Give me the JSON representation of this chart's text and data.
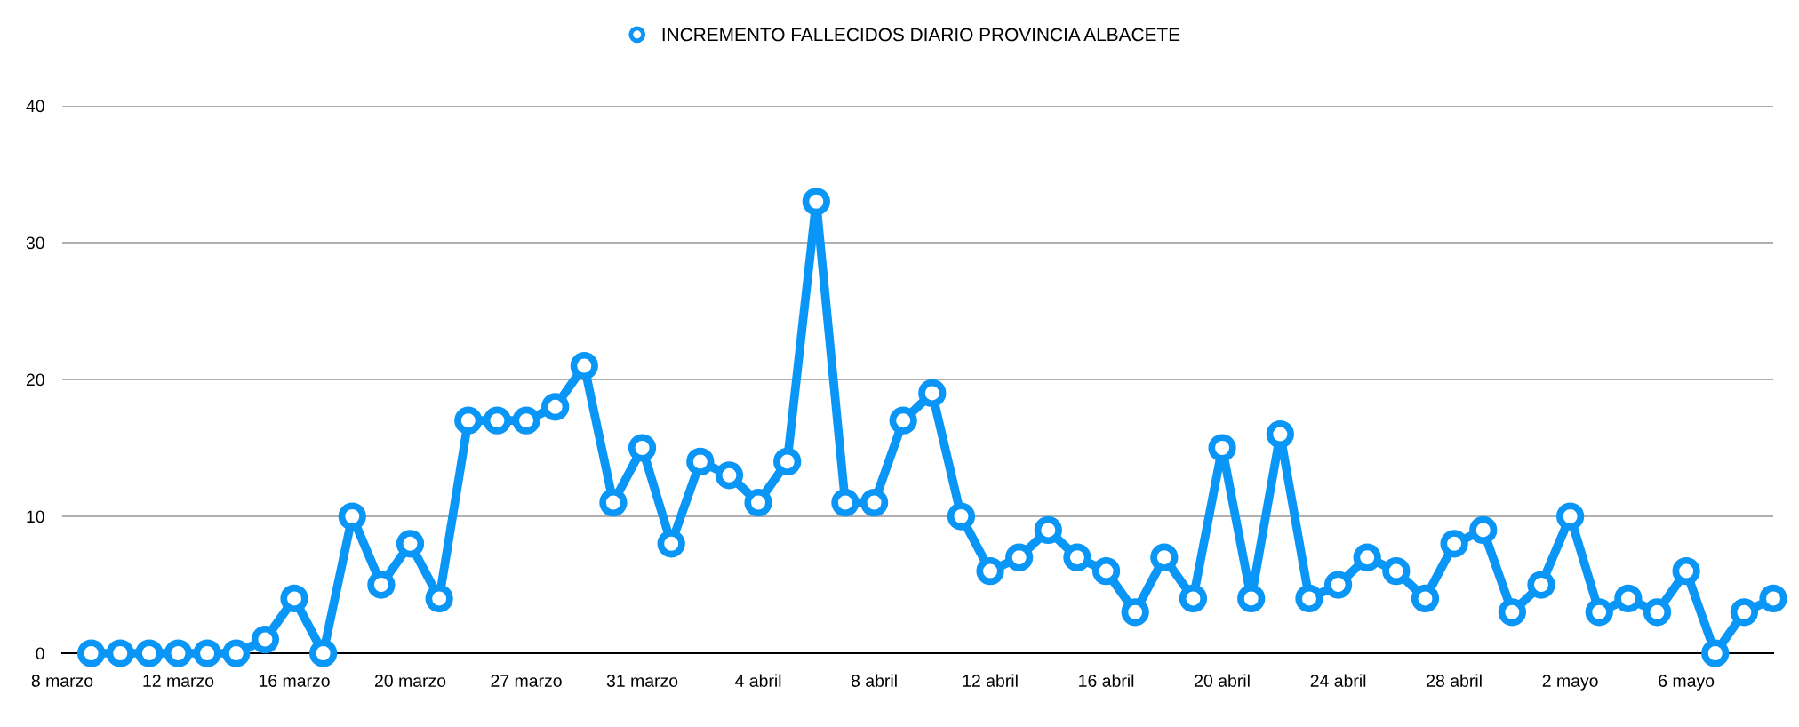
{
  "chart_data": {
    "type": "line",
    "categories": [
      "8 marzo",
      null,
      null,
      null,
      "12 marzo",
      null,
      null,
      null,
      "16 marzo",
      null,
      null,
      null,
      "20 marzo",
      null,
      null,
      null,
      "27 marzo",
      null,
      null,
      null,
      "31 marzo",
      null,
      null,
      null,
      "4 abril",
      null,
      null,
      null,
      "8 abril",
      null,
      null,
      null,
      "12 abril",
      null,
      null,
      null,
      "16 abril",
      null,
      null,
      null,
      "20 abril",
      null,
      null,
      null,
      "24 abril",
      null,
      null,
      null,
      "28 abril",
      null,
      null,
      null,
      "2 mayo",
      null,
      null,
      null,
      "6 mayo",
      null,
      null,
      null
    ],
    "series": [
      {
        "name": "INCREMENTO FALLECIDOS DIARIO PROVINCIA ALBACETE",
        "color": "#0a96f7",
        "values": [
          null,
          0,
          0,
          0,
          0,
          0,
          0,
          1,
          4,
          0,
          10,
          5,
          8,
          4,
          17,
          17,
          17,
          18,
          21,
          11,
          15,
          8,
          14,
          13,
          11,
          14,
          33,
          11,
          11,
          17,
          19,
          10,
          6,
          7,
          9,
          7,
          6,
          3,
          7,
          4,
          15,
          4,
          16,
          4,
          5,
          7,
          6,
          4,
          8,
          9,
          3,
          5,
          10,
          3,
          4,
          3,
          6,
          0,
          3,
          4
        ]
      }
    ],
    "ylim": [
      0,
      40
    ],
    "yticks": [
      0,
      10,
      20,
      30,
      40
    ],
    "grid": "y",
    "legend": "top",
    "marker": "circle",
    "line_style": "solid"
  }
}
